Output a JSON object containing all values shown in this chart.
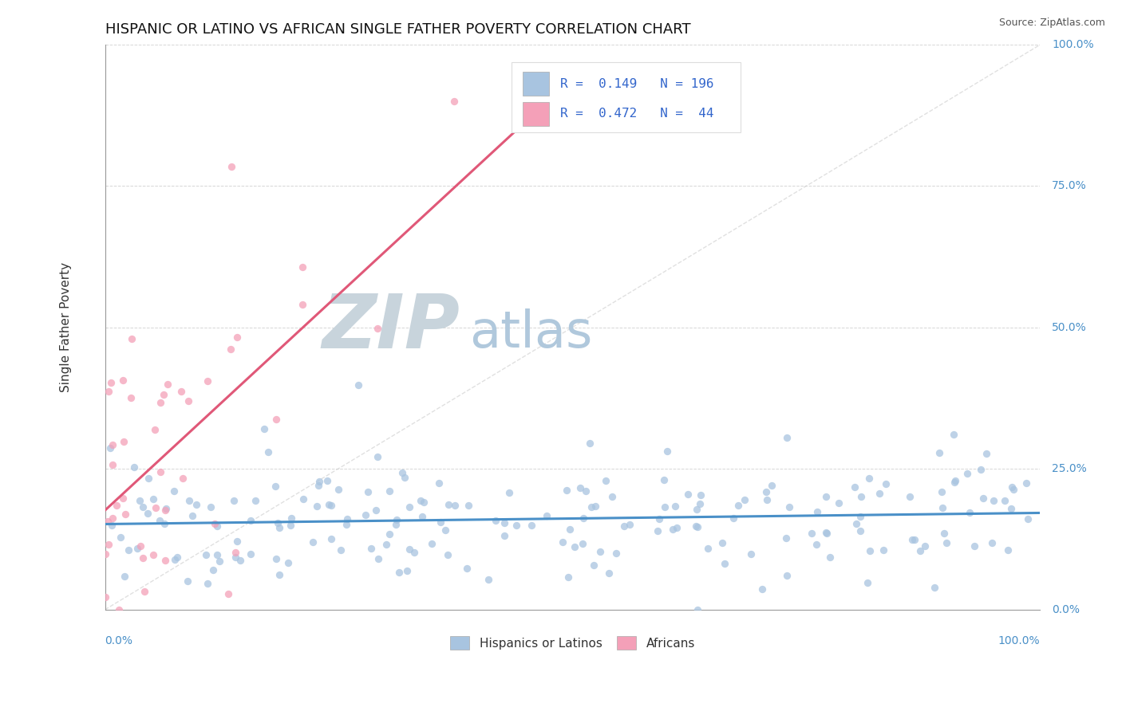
{
  "title": "HISPANIC OR LATINO VS AFRICAN SINGLE FATHER POVERTY CORRELATION CHART",
  "source": "Source: ZipAtlas.com",
  "ylabel": "Single Father Poverty",
  "ytick_labels": [
    "0.0%",
    "25.0%",
    "50.0%",
    "75.0%",
    "100.0%"
  ],
  "ytick_vals": [
    0.0,
    0.25,
    0.5,
    0.75,
    1.0
  ],
  "xlim": [
    0.0,
    1.0
  ],
  "ylim": [
    0.0,
    1.0
  ],
  "blue_color": "#a8c4e0",
  "pink_color": "#f4a0b8",
  "blue_line_color": "#4a90c8",
  "pink_line_color": "#e05878",
  "diag_line_color": "#cccccc",
  "grid_color": "#cccccc",
  "legend_text_color": "#3366cc",
  "watermark_zip_color": "#c8d4de",
  "watermark_atlas_color": "#b8cede",
  "R_blue": 0.149,
  "N_blue": 196,
  "R_pink": 0.472,
  "N_pink": 44,
  "blue_scatter_seed": 42,
  "pink_scatter_seed": 99
}
